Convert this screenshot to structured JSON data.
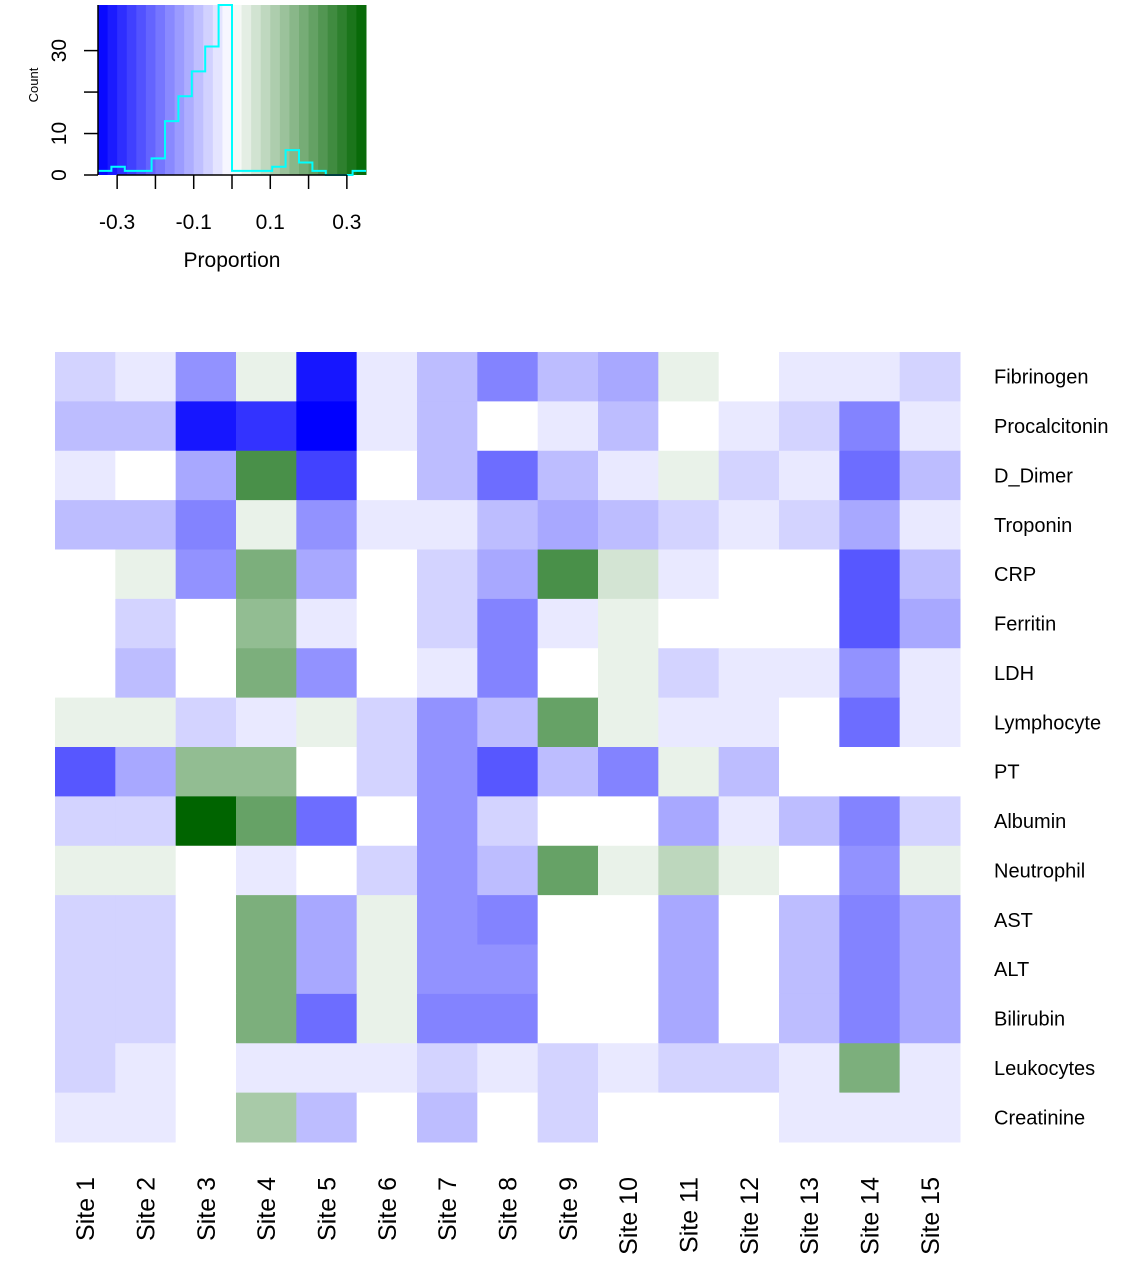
{
  "chart_data": {
    "type": "heatmap",
    "colors": [
      "#0000ff",
      "#ffffff",
      "#006400"
    ],
    "zlim": [
      -0.35,
      0.35
    ],
    "key": {
      "xlabel": "Proportion",
      "ylabel": "Count",
      "xlim": [
        -0.35,
        0.35
      ],
      "xticks": [
        {
          "value": -0.3,
          "label": "-0.3"
        },
        {
          "value": -0.1,
          "label": "-0.1"
        },
        {
          "value": 0.1,
          "label": "0.1"
        },
        {
          "value": 0.3,
          "label": "0.3"
        }
      ],
      "xminor_ticks": [
        -0.2,
        0,
        0.2
      ],
      "ylim": [
        0,
        41
      ],
      "yticks": [
        0,
        10,
        30
      ],
      "yminor_ticks": [
        20
      ],
      "bins": [
        -0.35,
        -0.315,
        -0.28,
        -0.245,
        -0.21,
        -0.175,
        -0.14,
        -0.105,
        -0.07,
        -0.035,
        0,
        0.035,
        0.07,
        0.105,
        0.14,
        0.175,
        0.21,
        0.245,
        0.28,
        0.315,
        0.35
      ],
      "counts": [
        1,
        2,
        1,
        1,
        4,
        13,
        19,
        25,
        31,
        41,
        1,
        1,
        1,
        2,
        6,
        3,
        1,
        0,
        0,
        1
      ],
      "hist_color": "#00ffff"
    },
    "columns": [
      "Site 1",
      "Site 2",
      "Site 3",
      "Site 4",
      "Site 5",
      "Site 6",
      "Site 7",
      "Site 8",
      "Site 9",
      "Site 10",
      "Site 11",
      "Site 12",
      "Site 13",
      "Site 14",
      "Site 15"
    ],
    "rows": [
      "Fibrinogen",
      "Procalcitonin",
      "D_Dimer",
      "Troponin",
      "CRP",
      "Ferritin",
      "LDH",
      "Lymphocyte",
      "PT",
      "Albumin",
      "Neutrophil",
      "AST",
      "ALT",
      "Bilirubin",
      "Leukocytes",
      "Creatinine"
    ],
    "values": [
      [
        -0.06,
        -0.03,
        -0.15,
        0.03,
        -0.32,
        -0.03,
        -0.09,
        -0.17,
        -0.09,
        -0.12,
        0.03,
        0,
        -0.03,
        -0.03,
        -0.06
      ],
      [
        -0.09,
        -0.09,
        -0.32,
        -0.28,
        -0.35,
        -0.03,
        -0.09,
        0,
        -0.03,
        -0.09,
        0,
        -0.03,
        -0.06,
        -0.17,
        -0.03
      ],
      [
        -0.03,
        0,
        -0.12,
        0.25,
        -0.26,
        0,
        -0.09,
        -0.2,
        -0.09,
        -0.03,
        0.03,
        -0.06,
        -0.03,
        -0.2,
        -0.09
      ],
      [
        -0.09,
        -0.09,
        -0.17,
        0.03,
        -0.15,
        -0.03,
        -0.03,
        -0.09,
        -0.12,
        -0.09,
        -0.06,
        -0.03,
        -0.06,
        -0.12,
        -0.03
      ],
      [
        0,
        0.03,
        -0.15,
        0.18,
        -0.12,
        0,
        -0.06,
        -0.12,
        0.25,
        0.06,
        -0.03,
        0,
        0,
        -0.23,
        -0.09
      ],
      [
        0,
        -0.06,
        0,
        0.15,
        -0.03,
        0,
        -0.06,
        -0.17,
        -0.03,
        0.03,
        0,
        0,
        0,
        -0.23,
        -0.12
      ],
      [
        0,
        -0.09,
        0,
        0.18,
        -0.15,
        0,
        -0.03,
        -0.17,
        0,
        0.03,
        -0.06,
        -0.03,
        -0.03,
        -0.15,
        -0.03
      ],
      [
        0.03,
        0.03,
        -0.06,
        -0.03,
        0.03,
        -0.06,
        -0.15,
        -0.09,
        0.21,
        0.03,
        -0.03,
        -0.03,
        0,
        -0.2,
        -0.03
      ],
      [
        -0.23,
        -0.12,
        0.15,
        0.15,
        0,
        -0.06,
        -0.15,
        -0.23,
        -0.09,
        -0.17,
        0.03,
        -0.09,
        0,
        0,
        0
      ],
      [
        -0.06,
        -0.06,
        0.35,
        0.21,
        -0.2,
        0,
        -0.15,
        -0.06,
        0,
        0,
        -0.12,
        -0.03,
        -0.09,
        -0.17,
        -0.06
      ],
      [
        0.03,
        0.03,
        0,
        -0.03,
        0,
        -0.06,
        -0.15,
        -0.09,
        0.21,
        0.03,
        0.09,
        0.03,
        0,
        -0.15,
        0.03
      ],
      [
        -0.06,
        -0.06,
        0,
        0.18,
        -0.12,
        0.03,
        -0.15,
        -0.17,
        0,
        0,
        -0.12,
        0,
        -0.09,
        -0.17,
        -0.12
      ],
      [
        -0.06,
        -0.06,
        0,
        0.18,
        -0.12,
        0.03,
        -0.15,
        -0.15,
        0,
        0,
        -0.12,
        0,
        -0.09,
        -0.17,
        -0.12
      ],
      [
        -0.06,
        -0.06,
        0,
        0.18,
        -0.2,
        0.03,
        -0.17,
        -0.17,
        0,
        0,
        -0.12,
        0,
        -0.09,
        -0.17,
        -0.12
      ],
      [
        -0.06,
        -0.03,
        0,
        -0.03,
        -0.03,
        -0.03,
        -0.06,
        -0.03,
        -0.06,
        -0.03,
        -0.06,
        -0.06,
        -0.03,
        0.18,
        -0.03
      ],
      [
        -0.03,
        -0.03,
        0,
        0.12,
        -0.09,
        0,
        -0.09,
        0,
        -0.06,
        0,
        0,
        0,
        -0.03,
        -0.03,
        -0.03
      ]
    ]
  }
}
